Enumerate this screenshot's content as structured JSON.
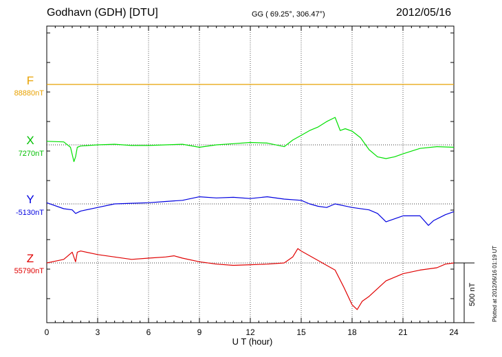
{
  "header": {
    "station": "Godhavn (GDH)  [DTU]",
    "coords": "GG ( 69.25°, 306.47°)",
    "date": "2012/05/16"
  },
  "credit": "Plotted at 2012/06/16 01:19 UT",
  "colors": {
    "F": "#e8a100",
    "X": "#00e000",
    "Y": "#0000e0",
    "Z": "#e00000"
  },
  "chart_data": {
    "type": "line",
    "title": "",
    "xlabel": "U T (hour)",
    "xlim": [
      0,
      24
    ],
    "xticks": [
      "0",
      "3",
      "6",
      "9",
      "12",
      "15",
      "18",
      "21",
      "24"
    ],
    "scale_bar": "500 nT",
    "panels": [
      {
        "name": "F",
        "baseline": "88880nT",
        "color": "#e8a100"
      },
      {
        "name": "X",
        "baseline": "7270nT",
        "color": "#00e000"
      },
      {
        "name": "Y",
        "baseline": "-5130nT",
        "color": "#0000e0"
      },
      {
        "name": "Z",
        "baseline": "55790nT",
        "color": "#e00000"
      }
    ],
    "series": [
      {
        "name": "F",
        "x": [
          0,
          24
        ],
        "y": [
          0,
          0
        ]
      },
      {
        "name": "X",
        "x": [
          0,
          1,
          1.4,
          1.6,
          1.7,
          1.8,
          2,
          3,
          4,
          5,
          6,
          7,
          8,
          9,
          10,
          11,
          12,
          13,
          14,
          14.5,
          15,
          15.5,
          16,
          16.5,
          17,
          17.3,
          17.6,
          18,
          18.5,
          19,
          19.5,
          20,
          20.5,
          21,
          22,
          23,
          24
        ],
        "y": [
          30,
          25,
          -20,
          -140,
          -100,
          -20,
          -10,
          0,
          5,
          -5,
          -5,
          0,
          5,
          -20,
          0,
          10,
          20,
          15,
          -15,
          40,
          80,
          120,
          150,
          195,
          230,
          120,
          135,
          115,
          60,
          -40,
          -100,
          -115,
          -100,
          -75,
          -30,
          -15,
          -20
        ]
      },
      {
        "name": "Y",
        "x": [
          0,
          1,
          1.5,
          1.7,
          2,
          3,
          4,
          5,
          6,
          7,
          8,
          9,
          10,
          11,
          12,
          13,
          14,
          15,
          15.5,
          16,
          16.5,
          17,
          18,
          19,
          19.5,
          20,
          21,
          22,
          22.5,
          22.8,
          23.5,
          24
        ],
        "y": [
          10,
          -40,
          -50,
          -80,
          -60,
          -30,
          0,
          5,
          10,
          20,
          30,
          60,
          50,
          55,
          45,
          60,
          40,
          30,
          0,
          -20,
          -30,
          0,
          -30,
          -50,
          -80,
          -150,
          -100,
          -100,
          -180,
          -140,
          -90,
          -65
        ]
      },
      {
        "name": "Z",
        "x": [
          0,
          1,
          1.5,
          1.7,
          1.8,
          2,
          3,
          4,
          5,
          6,
          7,
          7.5,
          8,
          9,
          10,
          11,
          12,
          13,
          14,
          14.5,
          14.8,
          15,
          16,
          16.5,
          17,
          17.5,
          18,
          18.3,
          18.6,
          19,
          20,
          21,
          22,
          23,
          23.5,
          24
        ],
        "y": [
          0,
          30,
          90,
          10,
          90,
          100,
          70,
          50,
          30,
          40,
          50,
          60,
          40,
          10,
          -10,
          -20,
          -15,
          -10,
          0,
          50,
          120,
          100,
          20,
          -20,
          -60,
          -200,
          -350,
          -390,
          -320,
          -280,
          -150,
          -90,
          -60,
          -40,
          -10,
          0
        ]
      }
    ]
  }
}
